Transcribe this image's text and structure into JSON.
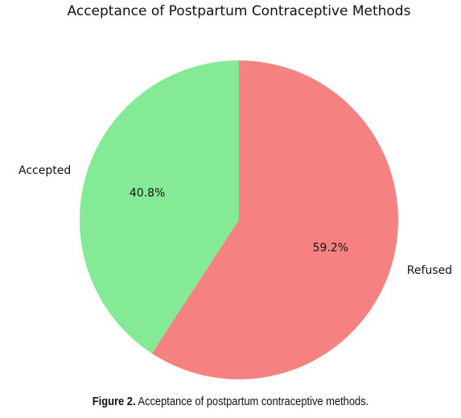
{
  "chart_data": {
    "type": "pie",
    "title": "Acceptance of Postpartum Contraceptive Methods",
    "slices": [
      {
        "label": "Accepted",
        "value": 40.8,
        "pct_label": "40.8%",
        "color": "#85ea95"
      },
      {
        "label": "Refused",
        "value": 59.2,
        "pct_label": "59.2%",
        "color": "#f68181"
      }
    ],
    "start_angle": "top (12 o'clock)",
    "direction": "counterclockwise",
    "legend": "none"
  },
  "caption": {
    "prefix": "Figure 2.",
    "text": "Acceptance of postpartum contraceptive methods."
  }
}
